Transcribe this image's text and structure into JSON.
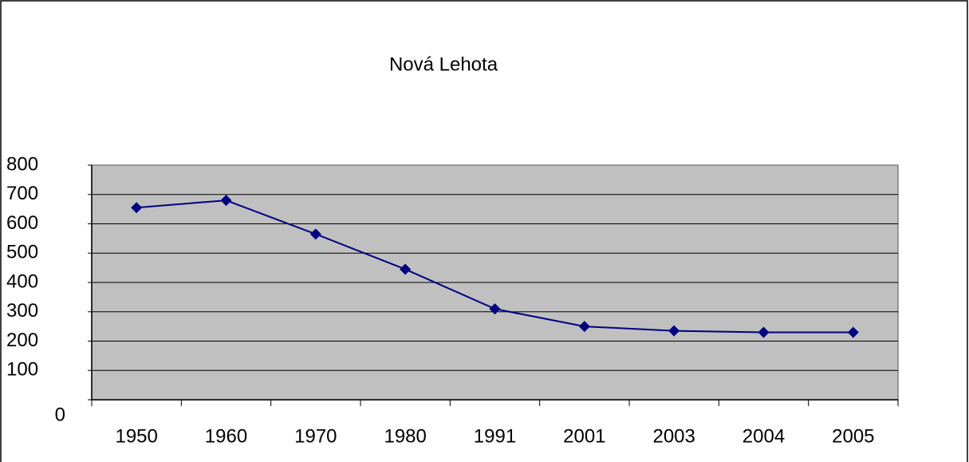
{
  "chart_data": {
    "type": "line",
    "title": "Nová Lehota",
    "categories": [
      "1950",
      "1960",
      "1970",
      "1980",
      "1991",
      "2001",
      "2003",
      "2004",
      "2005"
    ],
    "series": [
      {
        "name": "Nová Lehota",
        "color": "#000080",
        "values": [
          655,
          680,
          565,
          445,
          310,
          250,
          235,
          230,
          230
        ]
      }
    ],
    "ylim": [
      0,
      800
    ],
    "yticks": [
      0,
      100,
      200,
      300,
      400,
      500,
      600,
      700,
      800
    ],
    "grid": true
  }
}
